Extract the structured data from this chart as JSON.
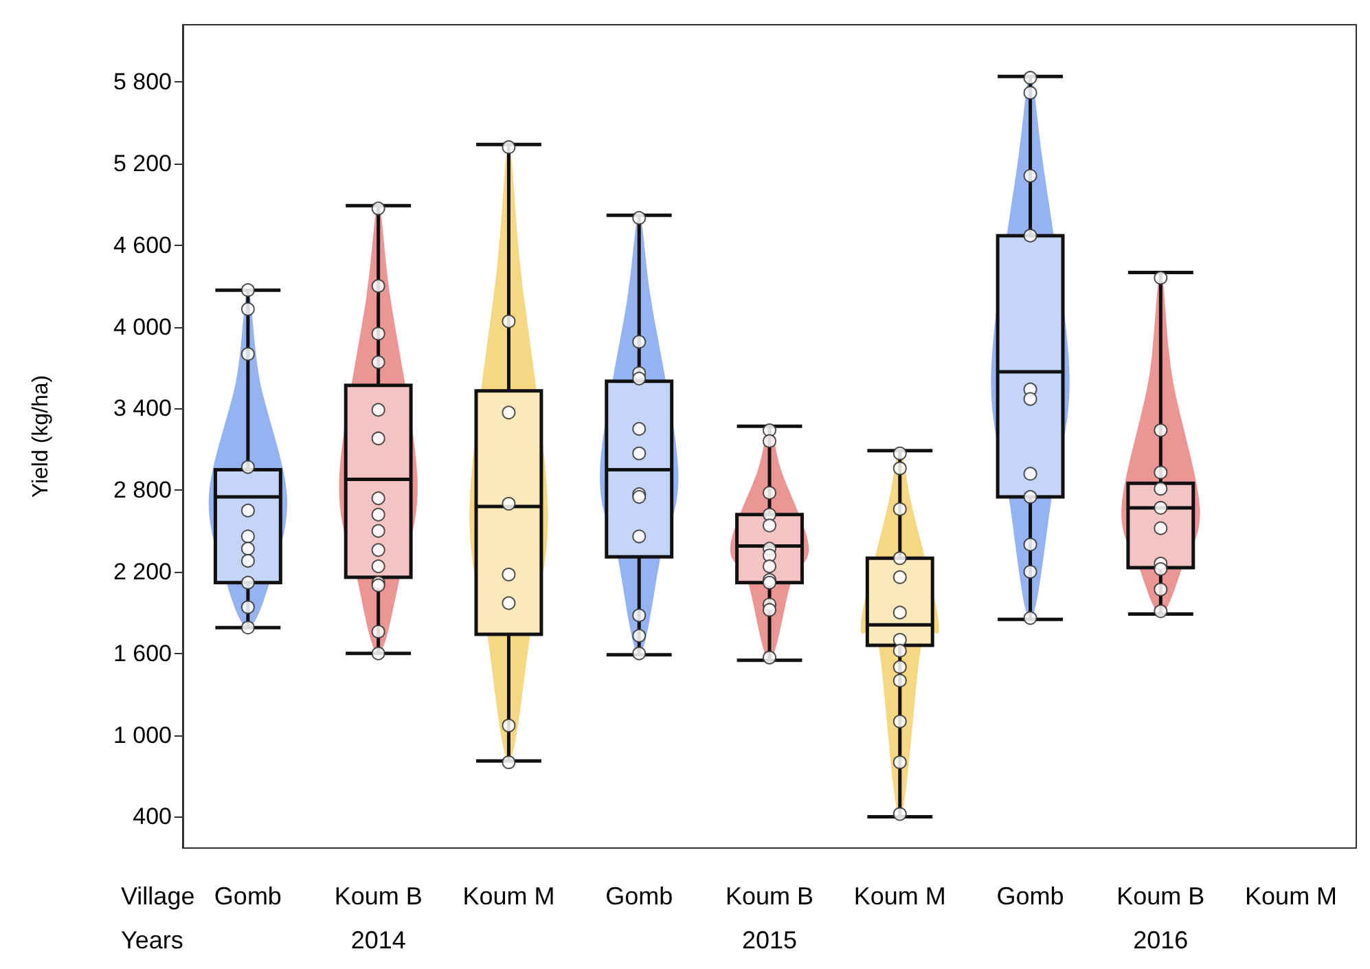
{
  "chart_data": {
    "type": "box",
    "ylabel": "Yield (kg/ha)",
    "categories": [
      "Gomb",
      "Koum B",
      "Koum M",
      "Gomb",
      "Koum B",
      "Koum M",
      "Gomb",
      "Koum B",
      "Koum M"
    ],
    "colors": [
      "#c5d5f7",
      "#f4c4c4",
      "#fae9bb",
      "#c5d5f7",
      "#f4c4c4",
      "#fae9bb",
      "#c5d5f7",
      "#f4c4c4",
      null
    ],
    "boxes": [
      {
        "low": 1790,
        "q1": 2120,
        "median": 2750,
        "q3": 2950,
        "high": 4270
      },
      {
        "low": 1600,
        "q1": 2160,
        "median": 2880,
        "q3": 3570,
        "high": 4890
      },
      {
        "low": 810,
        "q1": 1740,
        "median": 2680,
        "q3": 3530,
        "high": 5340
      },
      {
        "low": 1590,
        "q1": 2310,
        "median": 2950,
        "q3": 3600,
        "high": 4820
      },
      {
        "low": 1550,
        "q1": 2120,
        "median": 2390,
        "q3": 2620,
        "high": 3270
      },
      {
        "low": 400,
        "q1": 1660,
        "median": 1810,
        "q3": 2300,
        "high": 3090
      },
      {
        "low": 1850,
        "q1": 2750,
        "median": 3670,
        "q3": 4670,
        "high": 5840
      },
      {
        "low": 1890,
        "q1": 2230,
        "median": 2670,
        "q3": 2850,
        "high": 4400
      },
      null
    ],
    "series": [
      {
        "type": "scatter",
        "color": "#ffffff",
        "values": [
          4270,
          4870,
          5320,
          4800,
          3240,
          3070,
          5830,
          4360,
          null
        ]
      },
      {
        "type": "scatter",
        "color": "#ffffff",
        "values": [
          4130,
          4300,
          4040,
          3890,
          3160,
          2960,
          5720,
          3240,
          null
        ]
      },
      {
        "type": "scatter",
        "color": "#ffffff",
        "values": [
          3800,
          3950,
          3370,
          3660,
          2780,
          2660,
          5110,
          2930,
          null
        ]
      },
      {
        "type": "scatter",
        "color": "#ffffff",
        "values": [
          2970,
          3740,
          2700,
          3620,
          2620,
          2300,
          4670,
          2810,
          null
        ]
      },
      {
        "type": "scatter",
        "color": "#ffffff",
        "values": [
          2650,
          3390,
          2180,
          3250,
          2540,
          2160,
          3540,
          2670,
          null
        ]
      },
      {
        "type": "scatter",
        "color": "#ffffff",
        "values": [
          2460,
          3180,
          1970,
          3070,
          2370,
          1900,
          3470,
          2520,
          null
        ]
      },
      {
        "type": "scatter",
        "color": "#ffffff",
        "values": [
          2370,
          2740,
          1070,
          2770,
          2320,
          1700,
          2920,
          2260,
          null
        ]
      },
      {
        "type": "scatter",
        "color": "#ffffff",
        "values": [
          2280,
          2620,
          800,
          2750,
          2240,
          1620,
          2750,
          2220,
          null
        ]
      },
      {
        "type": "scatter",
        "color": "#ffffff",
        "values": [
          2120,
          2500,
          null,
          2460,
          2140,
          1500,
          2400,
          2070,
          null
        ]
      },
      {
        "type": "scatter",
        "color": "#ffffff",
        "values": [
          1940,
          2360,
          null,
          1880,
          2120,
          1400,
          2200,
          1910,
          null
        ]
      },
      {
        "type": "scatter",
        "color": "#ffffff",
        "values": [
          1790,
          2240,
          null,
          1730,
          1960,
          1100,
          1860,
          null,
          null
        ]
      },
      {
        "type": "scatter",
        "color": "#ffffff",
        "values": [
          null,
          2120,
          null,
          1600,
          1920,
          800,
          null,
          null,
          null
        ]
      },
      {
        "type": "scatter",
        "color": "#ffffff",
        "values": [
          null,
          2100,
          null,
          null,
          1570,
          420,
          null,
          null,
          null
        ]
      },
      {
        "type": "scatter",
        "color": "#ffffff",
        "values": [
          null,
          1760,
          null,
          null,
          null,
          null,
          null,
          null,
          null
        ]
      },
      {
        "type": "scatter",
        "color": "#ffffff",
        "values": [
          null,
          1600,
          null,
          null,
          null,
          null,
          null,
          null,
          null
        ]
      }
    ],
    "ylim": [
      170,
      6220
    ],
    "yticks": [
      {
        "value": 400,
        "label": "400"
      },
      {
        "value": 1000,
        "label": "1 000"
      },
      {
        "value": 1600,
        "label": "1 600"
      },
      {
        "value": 2200,
        "label": "2 200"
      },
      {
        "value": 2800,
        "label": "2 800"
      },
      {
        "value": 3400,
        "label": "3 400"
      },
      {
        "value": 4000,
        "label": "4 000"
      },
      {
        "value": 4600,
        "label": "4 600"
      },
      {
        "value": 5200,
        "label": "5 200"
      },
      {
        "value": 5800,
        "label": "5 800"
      }
    ],
    "grid": false,
    "marker": "circle",
    "annotations": [
      "Village",
      "Years",
      "2014",
      "2015",
      "2016"
    ]
  }
}
